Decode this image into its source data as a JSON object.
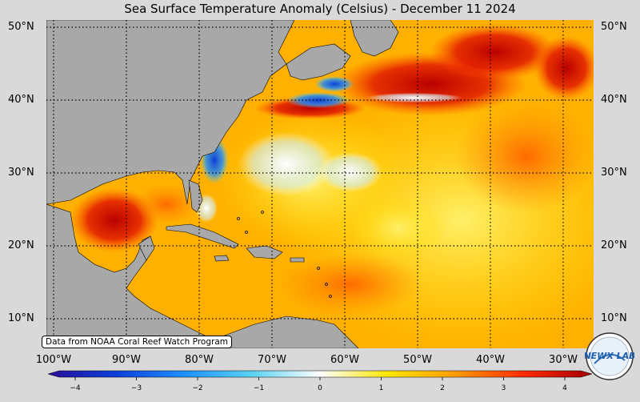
{
  "title": "Sea Surface Temperature Anomaly (Celsius) - December 11 2024",
  "credit": "Data from NOAA Coral Reef Watch Program",
  "logo_text": "NEWX LAB",
  "lat_labels": [
    "50°N",
    "40°N",
    "30°N",
    "20°N",
    "10°N"
  ],
  "lon_labels": [
    "100°W",
    "90°W",
    "80°W",
    "70°W",
    "60°W",
    "50°W",
    "40°W",
    "30°W"
  ],
  "colorbar": {
    "min": -4,
    "max": 4,
    "ticks": [
      "−4",
      "−3",
      "−2",
      "−1",
      "0",
      "1",
      "2",
      "3",
      "4"
    ],
    "colors": [
      "#2a0f9a",
      "#0a3fd8",
      "#1e90ff",
      "#5ad2f4",
      "#ffffff",
      "#ffe600",
      "#ff9a00",
      "#ff2a00",
      "#a10000"
    ]
  },
  "colors": {
    "land": "#a8a8a8",
    "ocean_base": "#ffb400",
    "grid": "#000000"
  }
}
